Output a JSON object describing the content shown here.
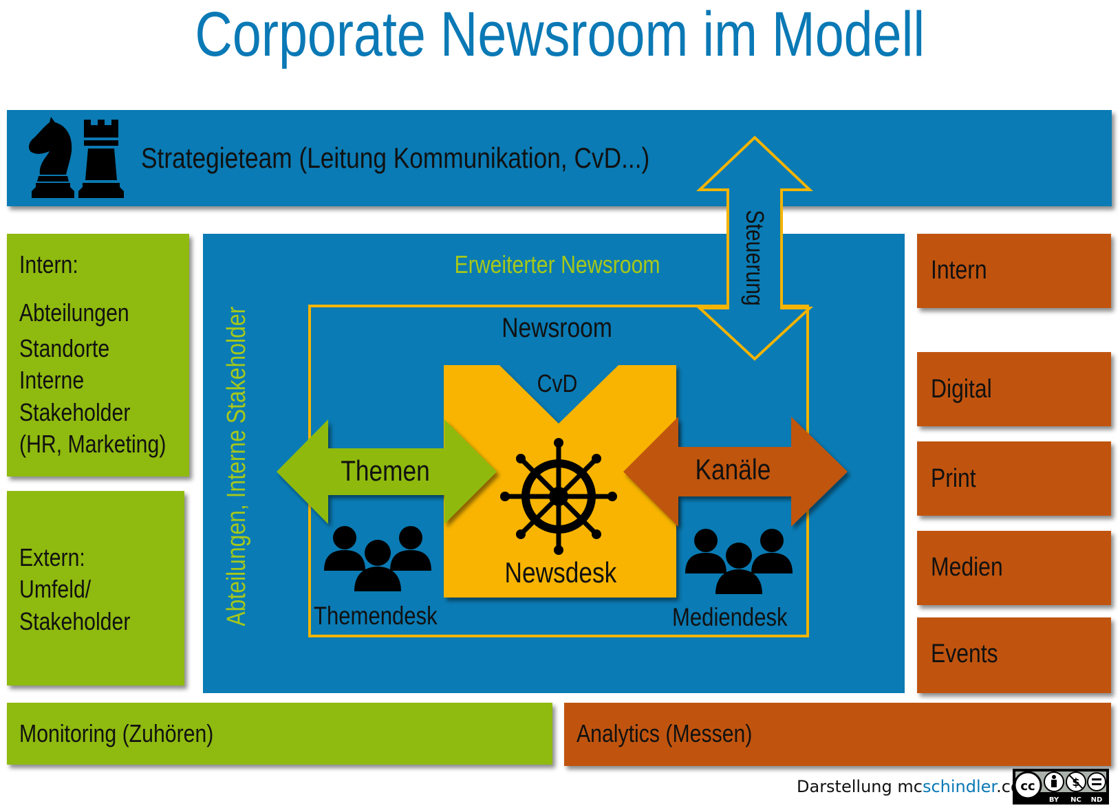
{
  "title": "Corporate Newsroom im Modell",
  "strategy": {
    "label": "Strategieteam (Leitung Kommunikation, CvD...)"
  },
  "steuerung": {
    "label": "Steuerung"
  },
  "intern_box": {
    "heading": "Intern:",
    "items": [
      "Abteilungen",
      "Standorte",
      "Interne",
      "Stakeholder",
      "(HR, Marketing)"
    ]
  },
  "extern_box": {
    "lines": [
      "Extern:",
      "Umfeld/",
      "Stakeholder"
    ]
  },
  "monitoring": {
    "label": "Monitoring (Zuhören)"
  },
  "analytics": {
    "label": "Analytics (Messen)"
  },
  "extended": {
    "label": "Erweiterter Newsroom",
    "side_label": "Abteilungen, Interne Stakeholder"
  },
  "newsroom": {
    "label": "Newsroom",
    "cvd": "CvD",
    "newsdesk": "Newsdesk",
    "themen": "Themen",
    "kanaele": "Kanäle",
    "themendesk": "Themendesk",
    "mediendesk": "Mediendesk"
  },
  "channels": [
    "Intern",
    "Digital",
    "Print",
    "Medien",
    "Events"
  ],
  "credit": {
    "prefix": "Darstellung mc",
    "brand": "schindler",
    "suffix": ".com",
    "license_badges": [
      "cc",
      "BY",
      "NC",
      "ND"
    ]
  },
  "colors": {
    "title_blue": "#0a79b5",
    "panel_blue": "#0a7bb4",
    "green": "#8fba0f",
    "orange": "#c0540f",
    "yellow": "#f4b400"
  },
  "icons": [
    "chess-knight-icon",
    "chess-rook-icon",
    "ship-wheel-icon",
    "people-group-icon"
  ]
}
